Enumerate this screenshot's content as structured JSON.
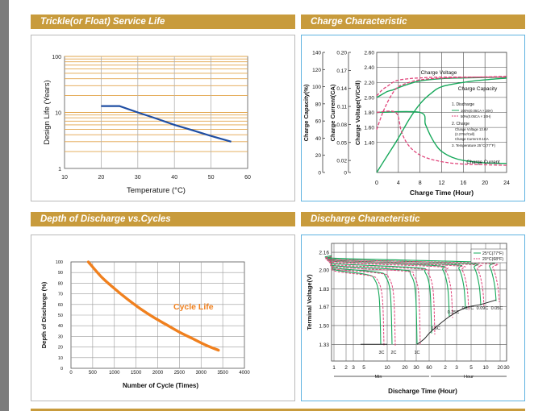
{
  "sections": {
    "trickle": "Trickle(or Float) Service Life",
    "charge": "Charge Characteristic",
    "dod": "Depth of Discharge vs.Cycles",
    "discharge": "Discharge Characteristic"
  },
  "chart_data": [
    {
      "type": "line",
      "title": "Trickle(or Float) Service Life",
      "xlabel": "Temperature (°C)",
      "ylabel": "Design Life (Years)",
      "x_ticks": [
        "10",
        "20",
        "30",
        "40",
        "50",
        "60"
      ],
      "y_ticks": [
        "100",
        "10",
        "1"
      ],
      "xlim": [
        10,
        60
      ],
      "ylim": [
        1,
        100
      ],
      "y_scale": "log",
      "grid": true,
      "series": [
        {
          "x": [
            20,
            25,
            30,
            35,
            40,
            45,
            50,
            55.5
          ],
          "y": [
            13,
            13,
            10,
            7.8,
            6,
            4.8,
            3.8,
            3
          ]
        }
      ]
    },
    {
      "type": "line",
      "title": "Charge Characteristic",
      "xlabel": "Charge Time (Hour)",
      "y_axes": [
        {
          "label": "Charge Capacity(%)",
          "ticks": [
            "0",
            "20",
            "40",
            "60",
            "80",
            "100",
            "120",
            "140"
          ]
        },
        {
          "label": "Charge Current(CA)",
          "ticks": [
            "0",
            "0.02",
            "0.05",
            "0.08",
            "0.11",
            "0.14",
            "0.17",
            "0.20"
          ]
        },
        {
          "label": "Charge Voltage(V/Cell)",
          "ticks": [
            "1.40",
            "1.60",
            "1.80",
            "2.00",
            "2.20",
            "2.40",
            "2.60"
          ]
        }
      ],
      "x_ticks": [
        "0",
        "4",
        "8",
        "12",
        "16",
        "20",
        "24"
      ],
      "xlim": [
        0,
        24
      ],
      "annotations": [
        "Charge Voltage",
        "Charge Capacity",
        "Charge Current"
      ],
      "notes": [
        "1.  Discharge",
        "100%(0.05CA × 20H)",
        "50%(0.05CA × 10H)",
        "2.  Charge",
        "Charge Voltage 13.6V",
        "(2.275V/Cell)",
        "Charge Current 0.1CA",
        "3.  Temperature 25°C(77°F)"
      ],
      "series": [
        {
          "curve": "voltage-100",
          "style": "solid",
          "x": [
            0,
            1,
            2,
            3,
            4,
            6,
            8,
            12,
            16,
            24
          ],
          "y": [
            2.0,
            2.04,
            2.08,
            2.1,
            2.13,
            2.18,
            2.22,
            2.25,
            2.26,
            2.27
          ]
        },
        {
          "curve": "voltage-50",
          "style": "dashed",
          "x": [
            0,
            1,
            2,
            3,
            4,
            6,
            8,
            12,
            24
          ],
          "y": [
            2.02,
            2.1,
            2.15,
            2.2,
            2.23,
            2.25,
            2.26,
            2.27,
            2.27
          ]
        },
        {
          "curve": "capacity-100",
          "style": "solid",
          "x": [
            0,
            2,
            4,
            6,
            8,
            10,
            12,
            16,
            20,
            24
          ],
          "y": [
            0,
            20,
            40,
            62,
            80,
            92,
            100,
            105,
            108,
            110
          ]
        },
        {
          "curve": "capacity-50",
          "style": "dashed",
          "x": [
            0,
            1,
            2,
            3,
            4,
            6,
            8,
            12,
            24
          ],
          "y": [
            50,
            68,
            82,
            93,
            100,
            105,
            108,
            110,
            112
          ]
        },
        {
          "curve": "current-100",
          "style": "solid",
          "x": [
            0,
            8,
            9,
            10,
            11,
            12,
            14,
            16,
            20,
            24
          ],
          "y": [
            0.1,
            0.1,
            0.08,
            0.06,
            0.045,
            0.035,
            0.025,
            0.02,
            0.016,
            0.015
          ]
        },
        {
          "curve": "current-50",
          "style": "dashed",
          "x": [
            0,
            3.5,
            4.5,
            5.5,
            7,
            9,
            12,
            16,
            24
          ],
          "y": [
            0.1,
            0.1,
            0.07,
            0.05,
            0.035,
            0.025,
            0.018,
            0.014,
            0.012
          ]
        }
      ]
    },
    {
      "type": "line",
      "title": "Depth of Discharge vs.Cycles",
      "xlabel": "Number of Cycle (Times)",
      "ylabel": "Depth of Discharge (%)",
      "x_ticks": [
        "0",
        "500",
        "1000",
        "1500",
        "2000",
        "2500",
        "3000",
        "3500",
        "4000"
      ],
      "y_ticks": [
        "0",
        "10",
        "20",
        "30",
        "40",
        "50",
        "60",
        "70",
        "80",
        "90",
        "100"
      ],
      "xlim": [
        0,
        4000
      ],
      "ylim": [
        0,
        100
      ],
      "grid": true,
      "annotation": "Cycle Life",
      "series": [
        {
          "x": [
            400,
            700,
            1000,
            1300,
            1600,
            1900,
            2200,
            2500,
            2800,
            3100,
            3400
          ],
          "y": [
            100,
            86,
            75,
            65,
            56,
            48,
            41,
            34,
            28,
            22,
            17
          ]
        }
      ]
    },
    {
      "type": "line",
      "title": "Discharge Characteristic",
      "xlabel": "Discharge Time (Hour)",
      "ylabel": "Terminal Voltage(V)",
      "y_ticks": [
        "1.33",
        "1.50",
        "1.67",
        "1.83",
        "2.00",
        "2.16"
      ],
      "x_ticks": [
        "1",
        "2",
        "3",
        "5",
        "10",
        "20",
        "30",
        "60",
        "2",
        "3",
        "5",
        "10",
        "20",
        "30"
      ],
      "x_units": [
        "Min",
        "Hour"
      ],
      "legend": [
        "25°C(77°F)",
        "20°C(68°F)"
      ],
      "rate_labels": [
        "3C",
        "2C",
        "1C",
        "0.6C",
        "0.25C",
        "0.17C",
        "0.09C",
        "0.05C"
      ],
      "legend_position": "top-right"
    }
  ]
}
